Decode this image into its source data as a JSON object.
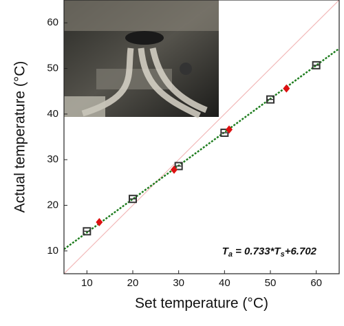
{
  "chart_data": {
    "type": "scatter",
    "xlabel": "Set temperature (°C)",
    "ylabel": "Actual temperature (°C)",
    "annotation": [
      "T",
      "a",
      " = 0.733*T",
      "s",
      "+6.702"
    ],
    "xlim": [
      5,
      65
    ],
    "ylim": [
      5,
      65
    ],
    "xticks": [
      10,
      20,
      30,
      40,
      50,
      60
    ],
    "yticks": [
      10,
      20,
      30,
      40,
      50,
      60
    ],
    "series": [
      {
        "kind": "line",
        "color": "#f2b8b8",
        "dash": "solid",
        "x": [
          5,
          65
        ],
        "values": [
          5,
          65
        ]
      },
      {
        "kind": "line",
        "color": "#1e7d1e",
        "dash": "dotted",
        "x": [
          5,
          65
        ],
        "values": [
          10.37,
          54.35
        ]
      },
      {
        "kind": "marker",
        "marker": "square",
        "color": "#333333",
        "x": [
          10,
          20,
          30,
          40,
          50,
          60
        ],
        "values": [
          14.3,
          21.4,
          28.6,
          35.9,
          43.2,
          50.7
        ]
      },
      {
        "kind": "marker",
        "marker": "diamond",
        "color": "#dd1111",
        "x": [
          12.7,
          29,
          41,
          53.5
        ],
        "values": [
          16.3,
          27.8,
          36.6,
          45.6
        ]
      }
    ]
  }
}
